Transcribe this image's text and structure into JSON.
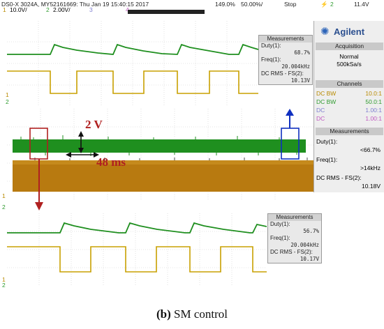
{
  "header": {
    "title": "DS0-X 3024A, MY52161669: Thu Jan 19 15:40:15 2017",
    "ch1_num": "1",
    "ch1_scale": "10.0V/",
    "ch2_num": "2",
    "ch2_scale": "2.00V/",
    "ch3_num": "3",
    "ch4_num": "4",
    "timebase": "149.0%",
    "time_div": "50.00%/",
    "run_state": "Stop",
    "trigger_ch": "2",
    "trigger_level": "11.4V"
  },
  "agilent_panel": {
    "brand": "Agilent",
    "acquisition": {
      "title": "Acquisition",
      "mode": "Normal",
      "rate": "500kSa/s"
    },
    "channels": {
      "title": "Channels",
      "rows": [
        {
          "coupling": "DC BW",
          "ratio": "10.0:1",
          "color": "#c9a400"
        },
        {
          "coupling": "DC BW",
          "ratio": "50.0:1",
          "color": "#3aa53a"
        },
        {
          "coupling": "DC",
          "ratio": "1.00:1",
          "color": "#6a6ad6"
        },
        {
          "coupling": "DC",
          "ratio": "1.00:1",
          "color": "#c05ac0"
        }
      ]
    },
    "measurements": {
      "title": "Measurements",
      "duty_label": "Duty(1):",
      "duty_value": "<66.7%",
      "freq_label": "Freq(1):",
      "freq_value": ">14kHz",
      "rms_label": "DC RMS - FS(2):",
      "rms_value": "10.18V"
    }
  },
  "measurements_top": {
    "title": "Measurements",
    "duty_label": "Duty(1):",
    "duty_value": "68.7%",
    "freq_label": "Freq(1):",
    "freq_value": "20.004kHz",
    "rms_label": "DC RMS - FS(2):",
    "rms_value": "10.13V"
  },
  "measurements_bottom": {
    "title": "Measurements",
    "duty_label": "Duty(1):",
    "duty_value": "56.7%",
    "freq_label": "Freq(1):",
    "freq_value": "20.004kHz",
    "rms_label": "DC RMS - FS(2):",
    "rms_value": "10.17V"
  },
  "annotations": {
    "voltage": "2 V",
    "time": "48 ms"
  },
  "markers": {
    "ch1": "1",
    "ch2": "2"
  },
  "caption": {
    "label": "(b)",
    "text": " SM control"
  },
  "colors": {
    "ch1": "#c8a000",
    "ch2": "#1f8f1f",
    "grid": "#c8c8c8",
    "annotation_red": "#b02020",
    "annotation_blue": "#1030c0"
  }
}
